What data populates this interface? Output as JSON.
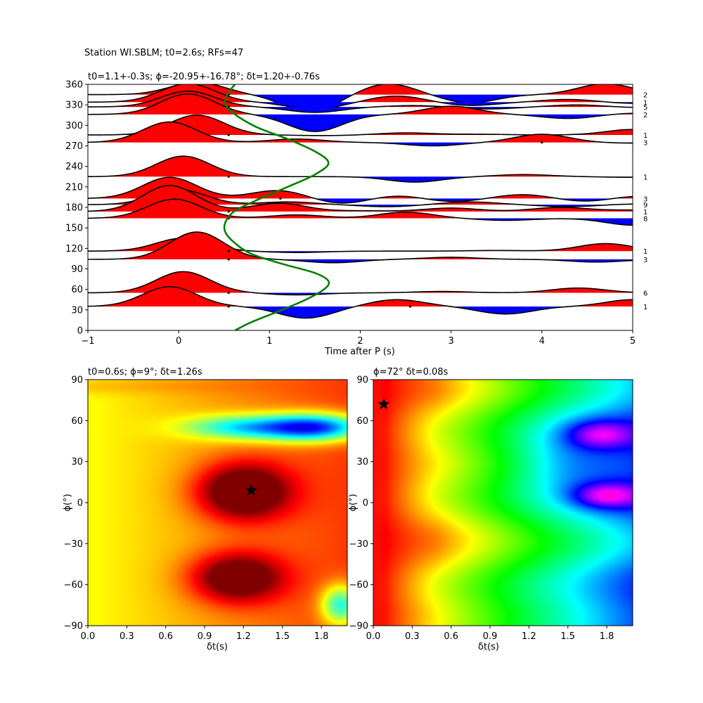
{
  "suptitle": "Station WI.SBLM; t0=2.6s; RFs=47",
  "chart_data": [
    {
      "type": "line",
      "name": "rf-traces",
      "title": "t0=1.1+-0.3s; ϕ=-20.95+-16.78°; δt=1.20+-0.76s",
      "xlabel": "Time after P (s)",
      "ylabel": "",
      "xlim": [
        -1,
        5
      ],
      "ylim": [
        0,
        360
      ],
      "xticks": [
        -1,
        0,
        1,
        2,
        3,
        4,
        5
      ],
      "yticks": [
        0,
        30,
        60,
        90,
        120,
        150,
        180,
        210,
        240,
        270,
        300,
        330,
        360
      ],
      "positive_fill_color": "#ff0000",
      "negative_fill_color": "#0000ff",
      "trace_color": "#000000",
      "traces": [
        {
          "baz": 35,
          "count_label": "1",
          "peaks": [
            [
              -0.1,
              29
            ],
            [
              1.4,
              -17
            ],
            [
              2.4,
              10
            ],
            [
              3.6,
              -11
            ],
            [
              5.0,
              10
            ]
          ]
        },
        {
          "baz": 55,
          "count_label": "6",
          "peaks": [
            [
              0.05,
              31
            ],
            [
              1.3,
              -3
            ],
            [
              2.9,
              2
            ],
            [
              4.4,
              7
            ]
          ]
        },
        {
          "baz": 104,
          "count_label": "3",
          "peaks": [
            [
              0.2,
              40
            ],
            [
              1.7,
              -5
            ],
            [
              3.0,
              3
            ],
            [
              4.6,
              -4
            ]
          ]
        },
        {
          "baz": 116,
          "count_label": "1",
          "peaks": [
            [
              0.05,
              19
            ],
            [
              1.3,
              -2
            ],
            [
              3.5,
              1
            ],
            [
              4.7,
              11
            ]
          ]
        },
        {
          "baz": 164,
          "count_label": "8",
          "peaks": [
            [
              -0.05,
              28
            ],
            [
              1.3,
              5
            ],
            [
              2.5,
              9
            ],
            [
              3.6,
              -3
            ],
            [
              5.0,
              -10
            ]
          ]
        },
        {
          "baz": 174,
          "count_label": "1",
          "peaks": [
            [
              -0.1,
              38
            ],
            [
              1.1,
              12
            ],
            [
              2.0,
              1
            ],
            [
              3.0,
              5
            ],
            [
              4.2,
              6
            ],
            [
              5.0,
              2
            ]
          ]
        },
        {
          "baz": 184,
          "count_label": "9",
          "peaks": [
            [
              0.0,
              22
            ],
            [
              1.2,
              4
            ],
            [
              2.3,
              -3
            ],
            [
              3.2,
              4
            ],
            [
              4.3,
              -3
            ],
            [
              5.0,
              1
            ]
          ]
        },
        {
          "baz": 193,
          "count_label": "3",
          "peaks": [
            [
              -0.1,
              31
            ],
            [
              1.1,
              12
            ],
            [
              1.8,
              -8
            ],
            [
              2.4,
              5
            ],
            [
              3.0,
              -5
            ],
            [
              3.8,
              6
            ],
            [
              4.5,
              -5
            ],
            [
              5.0,
              4
            ]
          ]
        },
        {
          "baz": 225,
          "count_label": "1",
          "peaks": [
            [
              0.05,
              30
            ],
            [
              2.6,
              -8
            ],
            [
              3.8,
              3
            ],
            [
              5.0,
              -1
            ]
          ]
        },
        {
          "baz": 275,
          "count_label": "3",
          "peaks": [
            [
              -0.1,
              30
            ],
            [
              1.3,
              5
            ],
            [
              2.8,
              -5
            ],
            [
              4.0,
              12
            ],
            [
              5.0,
              -1
            ]
          ]
        },
        {
          "baz": 286,
          "count_label": "1",
          "peaks": [
            [
              0.2,
              29
            ],
            [
              1.6,
              -1
            ],
            [
              2.5,
              3
            ],
            [
              3.3,
              1
            ],
            [
              5.0,
              8
            ]
          ]
        },
        {
          "baz": 316,
          "count_label": "2",
          "peaks": [
            [
              0.1,
              30
            ],
            [
              1.5,
              -25
            ],
            [
              3.0,
              12
            ],
            [
              4.3,
              -6
            ],
            [
              5.0,
              2
            ]
          ]
        },
        {
          "baz": 327,
          "count_label": "5",
          "peaks": [
            [
              0.1,
              23
            ],
            [
              1.5,
              -8
            ],
            [
              2.6,
              2
            ],
            [
              3.4,
              -3
            ],
            [
              4.4,
              3
            ],
            [
              5.0,
              -1
            ]
          ]
        },
        {
          "baz": 334,
          "count_label": "1",
          "peaks": [
            [
              0.1,
              27
            ],
            [
              1.5,
              -10
            ],
            [
              2.4,
              9
            ],
            [
              3.2,
              -5
            ],
            [
              4.3,
              4
            ],
            [
              5.0,
              -2
            ]
          ]
        },
        {
          "baz": 345,
          "count_label": "2",
          "peaks": [
            [
              0.2,
              18
            ],
            [
              1.45,
              -25
            ],
            [
              2.3,
              16
            ],
            [
              3.2,
              -12
            ],
            [
              4.7,
              16
            ]
          ]
        }
      ],
      "markers": [
        {
          "x": 0.55,
          "y": 35
        },
        {
          "x": 2.55,
          "y": 35
        },
        {
          "x": 0.55,
          "y": 55
        },
        {
          "x": 0.55,
          "y": 104
        },
        {
          "x": 0.55,
          "y": 116
        },
        {
          "x": 0.55,
          "y": 164
        },
        {
          "x": 0.55,
          "y": 174
        },
        {
          "x": 1.12,
          "y": 193
        },
        {
          "x": 0.55,
          "y": 225
        },
        {
          "x": 4.0,
          "y": 275
        },
        {
          "x": 0.55,
          "y": 286
        },
        {
          "x": 0.55,
          "y": 327
        },
        {
          "x": 0.55,
          "y": 345
        }
      ],
      "series": [
        {
          "color": "#008000",
          "points": [
            [
              0.62,
              0
            ],
            [
              0.8,
              12
            ],
            [
              1.1,
              28
            ],
            [
              1.4,
              45
            ],
            [
              1.6,
              60
            ],
            [
              1.65,
              72
            ],
            [
              1.5,
              84
            ],
            [
              1.15,
              97
            ],
            [
              0.8,
              112
            ],
            [
              0.6,
              130
            ],
            [
              0.51,
              145
            ],
            [
              0.52,
              160
            ],
            [
              0.62,
              175
            ],
            [
              0.85,
              190
            ],
            [
              1.2,
              210
            ],
            [
              1.5,
              228
            ],
            [
              1.65,
              245
            ],
            [
              1.5,
              262
            ],
            [
              1.2,
              280
            ],
            [
              0.85,
              298
            ],
            [
              0.6,
              318
            ],
            [
              0.51,
              333
            ],
            [
              0.55,
              348
            ],
            [
              0.62,
              360
            ]
          ]
        }
      ]
    },
    {
      "type": "heatmap",
      "name": "energy-map",
      "title": "t0=0.6s; ϕ=9°; δt=1.26s",
      "xlabel": "δt(s)",
      "ylabel": "ϕ(°)",
      "xlim": [
        0,
        2
      ],
      "ylim": [
        -90,
        90
      ],
      "xticks": [
        0.0,
        0.3,
        0.6,
        0.9,
        1.2,
        1.5,
        1.8
      ],
      "xtick_labels": [
        "0.0",
        "0.3",
        "0.6",
        "0.9",
        "1.2",
        "1.5",
        "1.8"
      ],
      "yticks": [
        -90,
        -60,
        -30,
        0,
        30,
        60,
        90
      ],
      "yticks_labels": [
        "−90",
        "−60",
        "−30",
        "0",
        "30",
        "60",
        "90"
      ],
      "colormap": "jet",
      "best": {
        "x": 1.26,
        "y": 9
      },
      "features": [
        {
          "x": 1.2,
          "y": 8,
          "sx": 0.35,
          "sy": 20,
          "v": 0.45
        },
        {
          "x": 1.15,
          "y": -55,
          "sx": 0.35,
          "sy": 18,
          "v": 0.4
        },
        {
          "x": 1.75,
          "y": 55,
          "sx": 0.4,
          "sy": 10,
          "v": -0.6
        },
        {
          "x": 1.2,
          "y": 55,
          "sx": 0.45,
          "sy": 9,
          "v": -0.35
        },
        {
          "x": 1.95,
          "y": -75,
          "sx": 0.15,
          "sy": 15,
          "v": -0.4
        }
      ]
    },
    {
      "type": "heatmap",
      "name": "misfit-map",
      "title": "ϕ=72° δt=0.08s",
      "xlabel": "δt(s)",
      "ylabel": "ϕ(°)",
      "xlim": [
        0,
        2
      ],
      "ylim": [
        -90,
        90
      ],
      "xticks": [
        0.0,
        0.3,
        0.6,
        0.9,
        1.2,
        1.5,
        1.8
      ],
      "xtick_labels": [
        "0.0",
        "0.3",
        "0.6",
        "0.9",
        "1.2",
        "1.5",
        "1.8"
      ],
      "yticks": [
        -90,
        -60,
        -30,
        0,
        30,
        60,
        90
      ],
      "yticks_labels": [
        "−90",
        "−60",
        "−30",
        "0",
        "30",
        "60",
        "90"
      ],
      "colormap": "hsv",
      "best": {
        "x": 0.08,
        "y": 72
      },
      "features": [
        {
          "x": 1.8,
          "y": 5,
          "sx": 0.25,
          "sy": 9,
          "v": 0.25
        },
        {
          "x": 1.75,
          "y": 50,
          "sx": 0.25,
          "sy": 10,
          "v": 0.22
        },
        {
          "x": 1.5,
          "y": 30,
          "sx": 0.4,
          "sy": 30,
          "v": 0.1
        }
      ]
    }
  ]
}
